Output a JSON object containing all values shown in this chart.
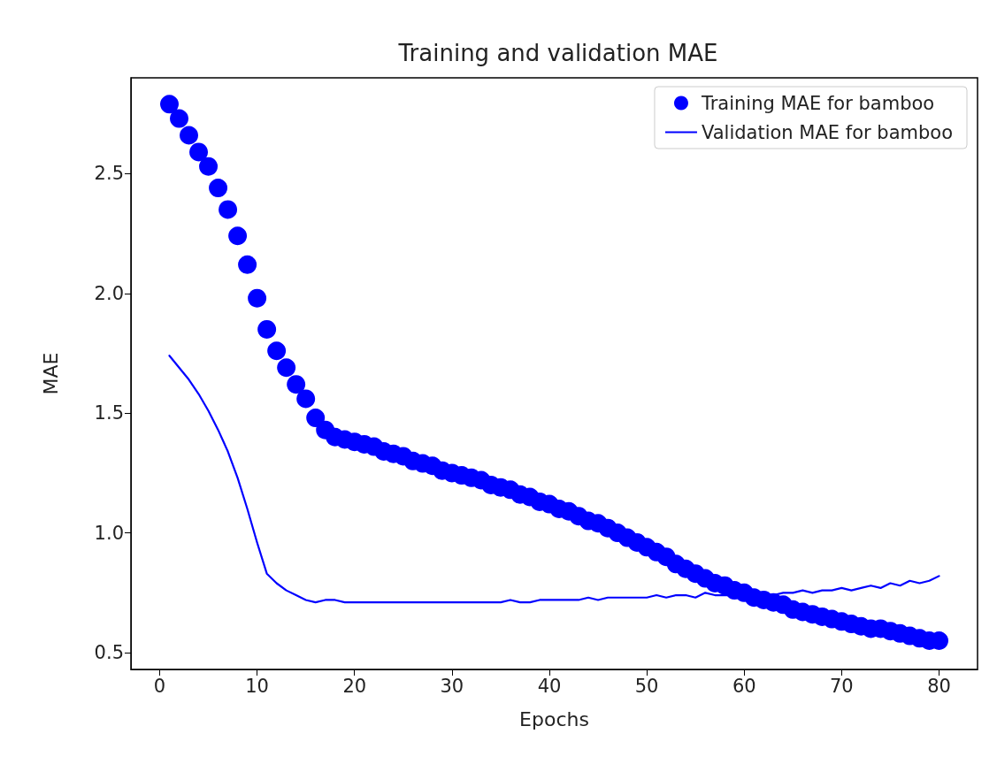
{
  "chart_data": {
    "type": "line",
    "title": "Training and validation MAE",
    "xlabel": "Epochs",
    "ylabel": "MAE",
    "x": [
      1,
      2,
      3,
      4,
      5,
      6,
      7,
      8,
      9,
      10,
      11,
      12,
      13,
      14,
      15,
      16,
      17,
      18,
      19,
      20,
      21,
      22,
      23,
      24,
      25,
      26,
      27,
      28,
      29,
      30,
      31,
      32,
      33,
      34,
      35,
      36,
      37,
      38,
      39,
      40,
      41,
      42,
      43,
      44,
      45,
      46,
      47,
      48,
      49,
      50,
      51,
      52,
      53,
      54,
      55,
      56,
      57,
      58,
      59,
      60,
      61,
      62,
      63,
      64,
      65,
      66,
      67,
      68,
      69,
      70,
      71,
      72,
      73,
      74,
      75,
      76,
      77,
      78,
      79,
      80
    ],
    "series": [
      {
        "name": "Training MAE for bamboo",
        "type": "scatter",
        "marker": "circle",
        "color": "#0000ff",
        "values": [
          2.79,
          2.73,
          2.66,
          2.59,
          2.53,
          2.44,
          2.35,
          2.24,
          2.12,
          1.98,
          1.85,
          1.76,
          1.69,
          1.62,
          1.56,
          1.48,
          1.43,
          1.4,
          1.39,
          1.38,
          1.37,
          1.36,
          1.34,
          1.33,
          1.32,
          1.3,
          1.29,
          1.28,
          1.26,
          1.25,
          1.24,
          1.23,
          1.22,
          1.2,
          1.19,
          1.18,
          1.16,
          1.15,
          1.13,
          1.12,
          1.1,
          1.09,
          1.07,
          1.05,
          1.04,
          1.02,
          1.0,
          0.98,
          0.96,
          0.94,
          0.92,
          0.9,
          0.87,
          0.85,
          0.83,
          0.81,
          0.79,
          0.78,
          0.76,
          0.75,
          0.73,
          0.72,
          0.71,
          0.7,
          0.68,
          0.67,
          0.66,
          0.65,
          0.64,
          0.63,
          0.62,
          0.61,
          0.6,
          0.6,
          0.59,
          0.58,
          0.57,
          0.56,
          0.55,
          0.55
        ]
      },
      {
        "name": "Validation MAE for bamboo",
        "type": "line",
        "marker": "none",
        "line_style": "solid",
        "color": "#0000ff",
        "values": [
          1.74,
          1.69,
          1.64,
          1.58,
          1.51,
          1.43,
          1.34,
          1.23,
          1.1,
          0.96,
          0.83,
          0.79,
          0.76,
          0.74,
          0.72,
          0.71,
          0.72,
          0.72,
          0.71,
          0.71,
          0.71,
          0.71,
          0.71,
          0.71,
          0.71,
          0.71,
          0.71,
          0.71,
          0.71,
          0.71,
          0.71,
          0.71,
          0.71,
          0.71,
          0.71,
          0.72,
          0.71,
          0.71,
          0.72,
          0.72,
          0.72,
          0.72,
          0.72,
          0.73,
          0.72,
          0.73,
          0.73,
          0.73,
          0.73,
          0.73,
          0.74,
          0.73,
          0.74,
          0.74,
          0.73,
          0.75,
          0.74,
          0.74,
          0.74,
          0.74,
          0.74,
          0.74,
          0.74,
          0.75,
          0.75,
          0.76,
          0.75,
          0.76,
          0.76,
          0.77,
          0.76,
          0.77,
          0.78,
          0.77,
          0.79,
          0.78,
          0.8,
          0.79,
          0.8,
          0.82
        ]
      }
    ],
    "xlim": [
      -2.95,
      83.95
    ],
    "xticks": [
      0,
      10,
      20,
      30,
      40,
      50,
      60,
      70,
      80
    ],
    "ylim": [
      0.43,
      2.9
    ],
    "yticks": [
      {
        "value": 0.5,
        "label": "0.5"
      },
      {
        "value": 1,
        "label": "1.0"
      },
      {
        "value": 1.5,
        "label": "1.5"
      },
      {
        "value": 2,
        "label": "2.0"
      },
      {
        "value": 2.5,
        "label": "2.5"
      }
    ],
    "legend": "top right",
    "grid": false
  }
}
